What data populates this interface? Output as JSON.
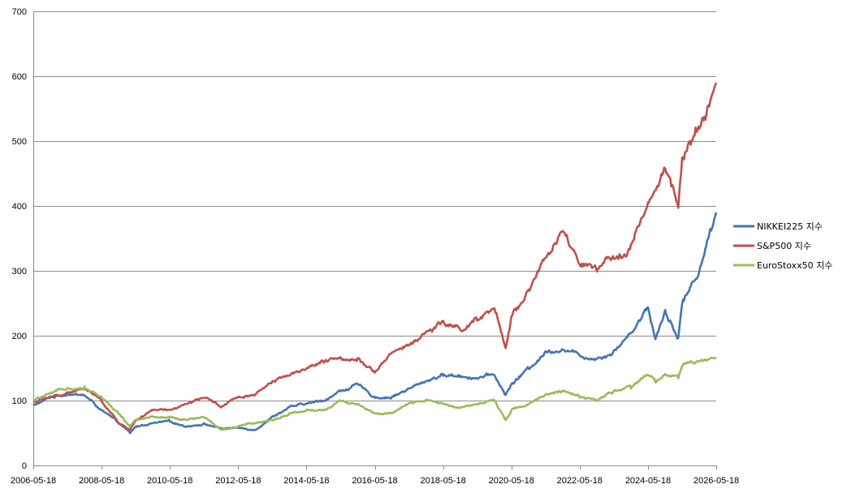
{
  "chart_data": {
    "type": "line",
    "title": "",
    "xlabel": "",
    "ylabel": "",
    "grid": "horizontal",
    "legend_position": "right",
    "ylim": [
      0,
      700
    ],
    "yticks": [
      0,
      100,
      200,
      300,
      400,
      500,
      600,
      700
    ],
    "xlim": [
      "2006-05-18",
      "2026-05-18"
    ],
    "xticks": [
      "2006-05-18",
      "2008-05-18",
      "2010-05-18",
      "2012-05-18",
      "2014-05-18",
      "2016-05-18",
      "2018-05-18",
      "2020-05-18",
      "2022-05-18",
      "2024-05-18",
      "2026-05-18"
    ],
    "x": [
      "2006-05-18",
      "2006-11-18",
      "2007-05-18",
      "2007-11-18",
      "2008-05-18",
      "2008-11-18",
      "2009-03-18",
      "2009-05-18",
      "2009-11-18",
      "2010-05-18",
      "2010-11-18",
      "2011-05-18",
      "2011-11-18",
      "2012-05-18",
      "2012-11-18",
      "2013-05-18",
      "2013-11-18",
      "2014-05-18",
      "2014-11-18",
      "2015-05-18",
      "2015-11-18",
      "2016-05-18",
      "2016-11-18",
      "2017-05-18",
      "2017-11-18",
      "2018-05-18",
      "2018-11-18",
      "2019-05-18",
      "2019-11-18",
      "2020-03-18",
      "2020-05-18",
      "2020-11-18",
      "2021-05-18",
      "2021-11-18",
      "2022-05-18",
      "2022-11-18",
      "2023-05-18",
      "2023-11-18",
      "2024-05-18",
      "2024-08-05",
      "2024-11-18",
      "2025-04-07",
      "2025-05-18",
      "2025-11-18",
      "2026-05-18"
    ],
    "series": [
      {
        "name": "NIKKEI225 지수",
        "color": "#4674B3",
        "values": [
          92,
          105,
          110,
          108,
          85,
          65,
          50,
          60,
          65,
          68,
          60,
          64,
          57,
          58,
          55,
          75,
          90,
          95,
          100,
          115,
          125,
          105,
          105,
          118,
          130,
          140,
          138,
          135,
          140,
          108,
          125,
          150,
          175,
          180,
          170,
          165,
          175,
          205,
          245,
          195,
          240,
          195,
          250,
          300,
          390
        ]
      },
      {
        "name": "S&P500 지수",
        "color": "#C0504D",
        "values": [
          98,
          105,
          112,
          118,
          100,
          65,
          55,
          70,
          85,
          85,
          95,
          105,
          90,
          105,
          110,
          130,
          140,
          150,
          160,
          165,
          165,
          145,
          175,
          185,
          205,
          220,
          210,
          225,
          240,
          180,
          230,
          270,
          320,
          360,
          310,
          300,
          320,
          340,
          400,
          420,
          460,
          400,
          470,
          520,
          590
        ]
      },
      {
        "name": "EuroStoxx50 지수",
        "color": "#9BBB59",
        "values": [
          100,
          110,
          120,
          120,
          105,
          80,
          60,
          70,
          75,
          75,
          70,
          75,
          55,
          60,
          65,
          70,
          80,
          85,
          85,
          100,
          95,
          80,
          80,
          95,
          100,
          95,
          90,
          95,
          100,
          70,
          85,
          95,
          110,
          115,
          105,
          100,
          115,
          120,
          140,
          130,
          140,
          135,
          155,
          160,
          165
        ]
      }
    ]
  }
}
